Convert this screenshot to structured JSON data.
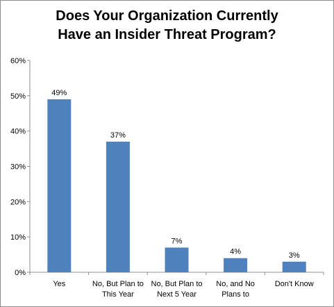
{
  "chart_data": {
    "type": "bar",
    "title_lines": [
      "Does Your Organization Currently",
      "Have an Insider Threat Program?"
    ],
    "categories": [
      [
        "Yes"
      ],
      [
        "No, But Plan to",
        "This Year"
      ],
      [
        "No, But Plan to",
        "Next 5 Year"
      ],
      [
        "No, and No",
        "Plans to"
      ],
      [
        "Don't Know"
      ]
    ],
    "values": [
      49,
      37,
      7,
      4,
      3
    ],
    "data_labels": [
      "49%",
      "37%",
      "7%",
      "4%",
      "3%"
    ],
    "ylim": [
      0,
      60
    ],
    "yticks": [
      0,
      10,
      20,
      30,
      40,
      50,
      60
    ],
    "ytick_labels": [
      "0%",
      "10%",
      "20%",
      "30%",
      "40%",
      "50%",
      "60%"
    ],
    "bar_color": "#4f81bd",
    "grid": false,
    "legend": "none",
    "xlabel": "",
    "ylabel": ""
  }
}
